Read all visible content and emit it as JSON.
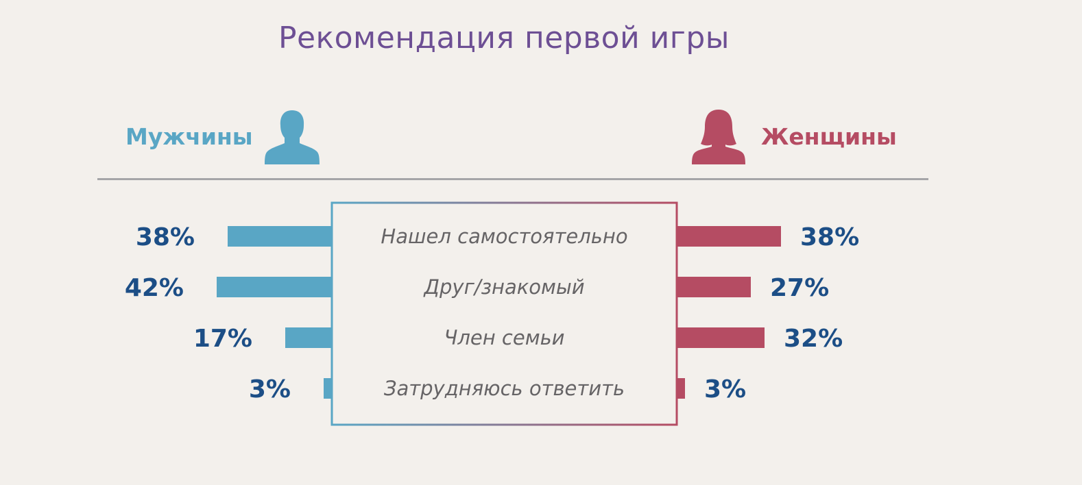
{
  "title": "Рекомендация первой игры",
  "colors": {
    "men": "#59a6c5",
    "women": "#b54c63",
    "title": "#6d4f94",
    "percent": "#1c4e86",
    "category": "#666466",
    "divider": "#a5a5a8",
    "background": "#f3f0ec"
  },
  "groups": {
    "men": {
      "label": "Мужчины",
      "icon": "male-user-icon"
    },
    "women": {
      "label": "Женщины",
      "icon": "female-user-icon"
    }
  },
  "chart_data": {
    "type": "bar",
    "orientation": "horizontal-diverging",
    "title": "Рекомендация первой игры",
    "categories": [
      "Нашел самостоятельно",
      "Друг/знакомый",
      "Член семьи",
      "Затрудняюсь ответить"
    ],
    "series": [
      {
        "name": "Мужчины",
        "values": [
          38,
          42,
          17,
          3
        ],
        "labels": [
          "38%",
          "42%",
          "17%",
          "3%"
        ]
      },
      {
        "name": "Женщины",
        "values": [
          38,
          27,
          32,
          3
        ],
        "labels": [
          "38%",
          "27%",
          "32%",
          "3%"
        ]
      }
    ],
    "unit": "%",
    "xlim": [
      0,
      45
    ],
    "grid": false,
    "legend": "top"
  }
}
